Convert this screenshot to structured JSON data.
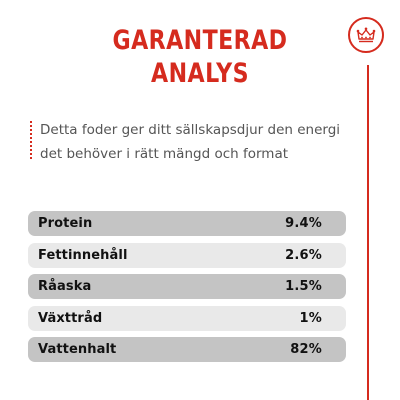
{
  "title": {
    "line1": "GARANTERAD",
    "line2": "ANALYS"
  },
  "badge": {
    "icon": "crown-icon",
    "color": "#d52b1e"
  },
  "description": {
    "line1": "Detta foder ger ditt sällskapsdjur den energi",
    "line2": "det behöver i rätt mängd och format"
  },
  "analysis": {
    "rows": [
      {
        "label": "Protein",
        "value": "9.4%"
      },
      {
        "label": "Fettinnehåll",
        "value": "2.6%"
      },
      {
        "label": "Råaska",
        "value": "1.5%"
      },
      {
        "label": "Växttråd",
        "value": "1%"
      },
      {
        "label": "Vattenhalt",
        "value": "82%"
      }
    ]
  },
  "colors": {
    "accent": "#d52b1e",
    "row_dark": "#c4c4c4",
    "row_light": "#e9e9e9"
  }
}
